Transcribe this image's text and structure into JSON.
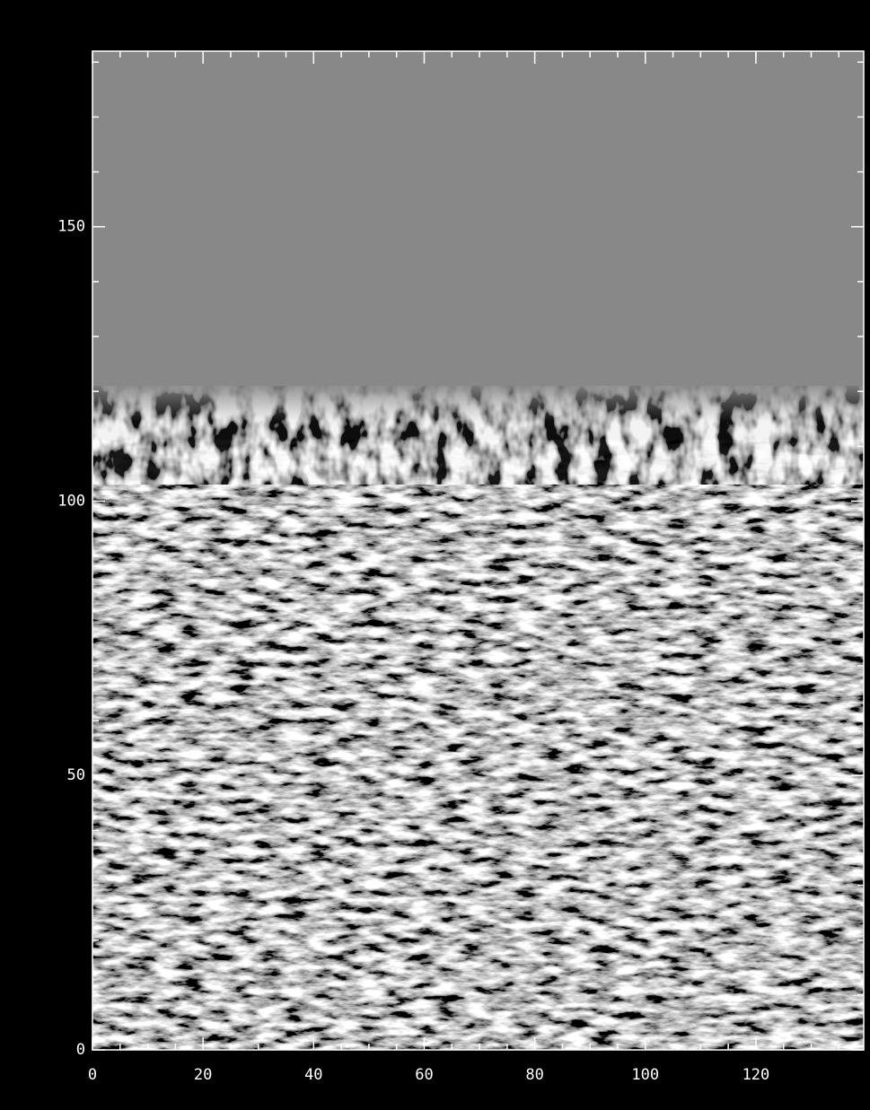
{
  "chart_data": {
    "type": "image",
    "xlim": [
      0,
      139.5
    ],
    "ylim": [
      0,
      182
    ],
    "xticks": [
      0,
      20,
      40,
      60,
      80,
      100,
      120
    ],
    "yticks": [
      0,
      50,
      100,
      150
    ]
  }
}
